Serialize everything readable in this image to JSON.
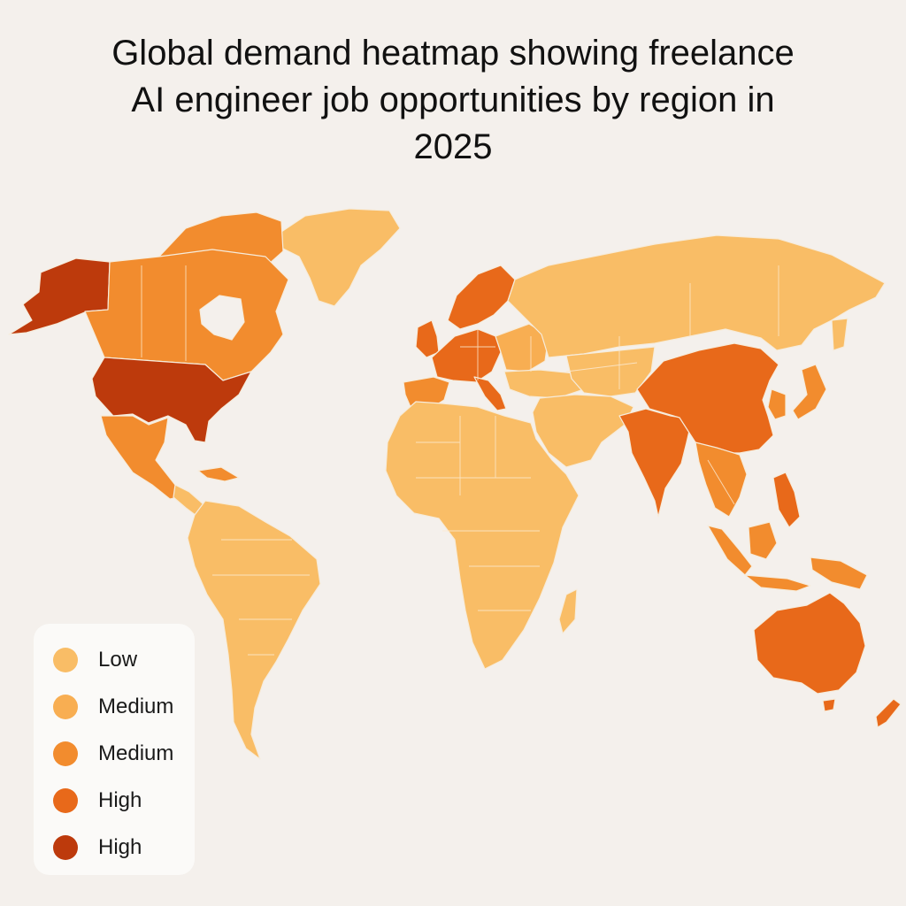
{
  "title": {
    "line1": "Global demand heatmap showing freelance",
    "line2": "AI engineer job opportunities by region in",
    "line3": "2025"
  },
  "legend": {
    "items": [
      {
        "label": "Low",
        "color": "#f9bd66"
      },
      {
        "label": "Medium",
        "color": "#f8ae52"
      },
      {
        "label": "Medium",
        "color": "#f28c2e"
      },
      {
        "label": "High",
        "color": "#e8691a"
      },
      {
        "label": "High",
        "color": "#bd3a0c"
      }
    ]
  },
  "colors": {
    "background": "#f4f0ec",
    "low": "#f9bd66",
    "medium_low": "#f8ae52",
    "medium": "#f28c2e",
    "high": "#e8691a",
    "very_high": "#bd3a0c"
  },
  "regions": [
    {
      "name": "Alaska",
      "level": "very_high"
    },
    {
      "name": "Canada",
      "level": "medium"
    },
    {
      "name": "United States",
      "level": "very_high"
    },
    {
      "name": "Mexico",
      "level": "medium"
    },
    {
      "name": "Greenland",
      "level": "low"
    },
    {
      "name": "Central America",
      "level": "low"
    },
    {
      "name": "Caribbean",
      "level": "medium"
    },
    {
      "name": "South America",
      "level": "low"
    },
    {
      "name": "Western Europe",
      "level": "high"
    },
    {
      "name": "Scandinavia",
      "level": "high"
    },
    {
      "name": "Iberia",
      "level": "medium"
    },
    {
      "name": "Eastern Europe",
      "level": "medium_low"
    },
    {
      "name": "Russia",
      "level": "low"
    },
    {
      "name": "Middle East",
      "level": "low"
    },
    {
      "name": "Africa",
      "level": "low"
    },
    {
      "name": "Central Asia",
      "level": "low"
    },
    {
      "name": "India",
      "level": "high"
    },
    {
      "name": "China",
      "level": "high"
    },
    {
      "name": "Southeast Asia",
      "level": "medium"
    },
    {
      "name": "Korea",
      "level": "medium"
    },
    {
      "name": "Japan",
      "level": "medium"
    },
    {
      "name": "Indonesia",
      "level": "medium"
    },
    {
      "name": "Philippines",
      "level": "high"
    },
    {
      "name": "Australia",
      "level": "high"
    },
    {
      "name": "New Zealand",
      "level": "high"
    },
    {
      "name": "Madagascar",
      "level": "low"
    }
  ]
}
